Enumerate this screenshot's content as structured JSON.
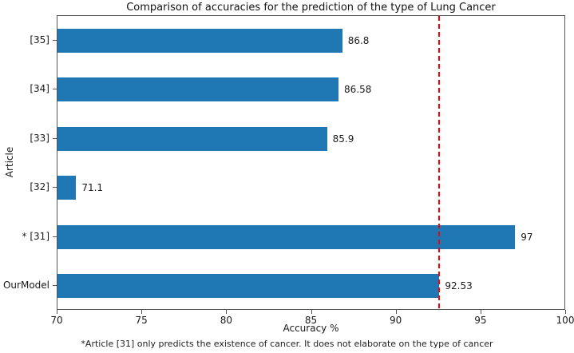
{
  "chart_data": {
    "type": "bar",
    "orientation": "horizontal",
    "title": "Comparison of accuracies for the prediction of the type of Lung Cancer",
    "xlabel": "Accuracy %",
    "ylabel": "Article",
    "categories": [
      "[35]",
      "[34]",
      "[33]",
      "[32]",
      "* [31]",
      "OurModel"
    ],
    "categories_order": "top-to-bottom",
    "values": [
      86.8,
      86.58,
      85.9,
      71.1,
      97,
      92.53
    ],
    "value_labels": [
      "86.8",
      "86.58",
      "85.9",
      "71.1",
      "97",
      "92.53"
    ],
    "xlim": [
      70,
      100
    ],
    "xticks": [
      70,
      75,
      80,
      85,
      90,
      95,
      100
    ],
    "xtick_labels": [
      "70",
      "75",
      "80",
      "85",
      "90",
      "95",
      "100"
    ],
    "bar_color": "#1f77b4",
    "reference_line": {
      "value": 92.53,
      "color": "#ff0000",
      "style": "dashed"
    },
    "grid": false,
    "legend": null,
    "footnote": "*Article [31] only predicts the existence of cancer. It does not elaborate on the type of cancer"
  }
}
